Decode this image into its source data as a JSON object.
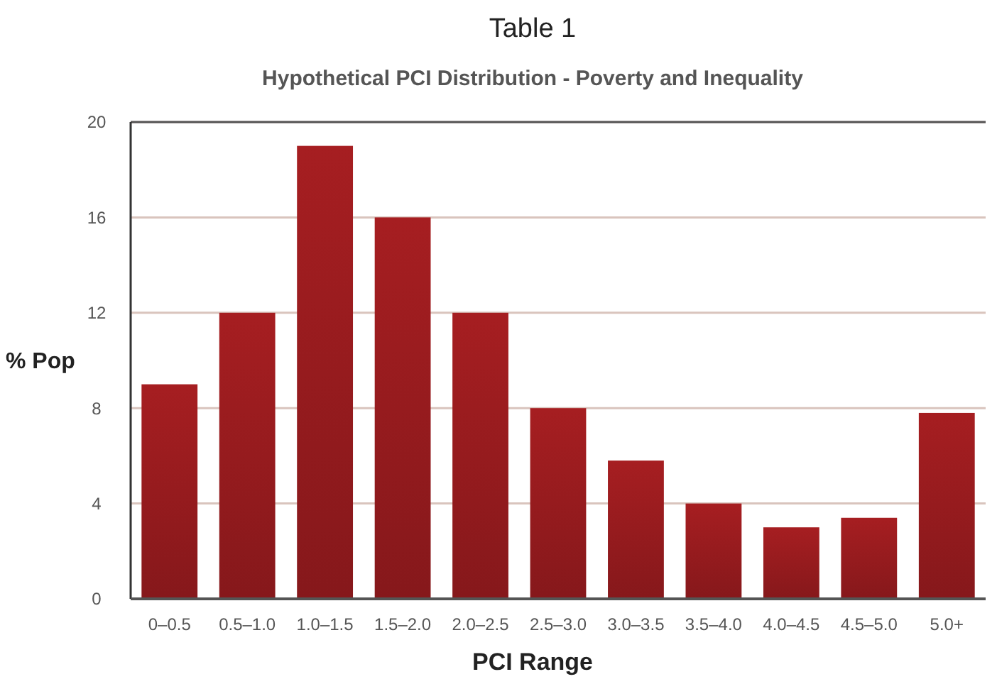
{
  "chart_data": {
    "type": "bar",
    "title": "Table 1",
    "subtitle": "Hypothetical PCI Distribution - Poverty and Inequality",
    "xlabel": "PCI Range",
    "ylabel": "% Pop",
    "categories": [
      "0–0.5",
      "0.5–1.0",
      "1.0–1.5",
      "1.5–2.0",
      "2.0–2.5",
      "2.5–3.0",
      "3.0–3.5",
      "3.5–4.0",
      "4.0–4.5",
      "4.5–5.0",
      "5.0+"
    ],
    "values": [
      9,
      12,
      19,
      16,
      12,
      8,
      5.8,
      4,
      3,
      3.4,
      7.8
    ],
    "color": "#951b1e",
    "ylim": [
      0,
      20
    ],
    "yticks": [
      0,
      4,
      8,
      12,
      16,
      20
    ],
    "grid": "y"
  }
}
